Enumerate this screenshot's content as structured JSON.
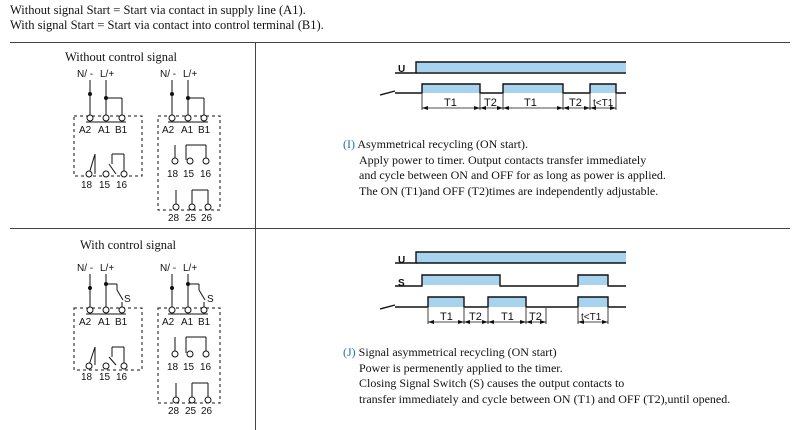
{
  "intro": {
    "line1": "Without signal Start = Start via contact in supply line (A1).",
    "line2": "With signal Start = Start via contact into control terminal (B1)."
  },
  "colors": {
    "pulse": "#a7d3ef",
    "accent": "#1f6fb2",
    "line": "#111111"
  },
  "section1": {
    "title": "Without control signal",
    "terminals": {
      "neutral": "N/ -",
      "live": "L/+",
      "a2": "A2",
      "a1": "A1",
      "b1": "B1",
      "c18": "18",
      "c15": "15",
      "c16": "16",
      "c28": "28",
      "c25": "25",
      "c26": "26"
    },
    "timing": {
      "u_label": "U",
      "t1": "T1",
      "t2": "T2",
      "t1b": "T1",
      "t2b": "T2",
      "tlt": "t<T1"
    },
    "desc": {
      "tag": "(I)",
      "title": "Asymmetrical recycling (ON start).",
      "l1": "Apply power to timer. Output contacts transfer immediately",
      "l2": "and cycle between ON and OFF for as long as power is applied.",
      "l3": "The ON (T1)and OFF (T2)times are independently adjustable."
    }
  },
  "section2": {
    "title": "With control signal",
    "terminals": {
      "neutral": "N/ -",
      "live": "L/+",
      "a2": "A2",
      "a1": "A1",
      "b1": "B1",
      "s": "S",
      "c18": "18",
      "c15": "15",
      "c16": "16",
      "c28": "28",
      "c25": "25",
      "c26": "26"
    },
    "timing": {
      "u_label": "U",
      "s_label": "S",
      "t1": "T1",
      "t2": "T2",
      "t1b": "T1",
      "t2b": "T2",
      "tlt": "t<T1"
    },
    "desc": {
      "tag": "(J)",
      "title": "Signal asymmetrical recycling (ON start)",
      "l1": "Power is permenently applied to the timer.",
      "l2": "Closing Signal Switch (S) causes the output contacts to",
      "l3": "transfer immediately and cycle between ON (T1) and OFF (T2),until opened."
    }
  }
}
